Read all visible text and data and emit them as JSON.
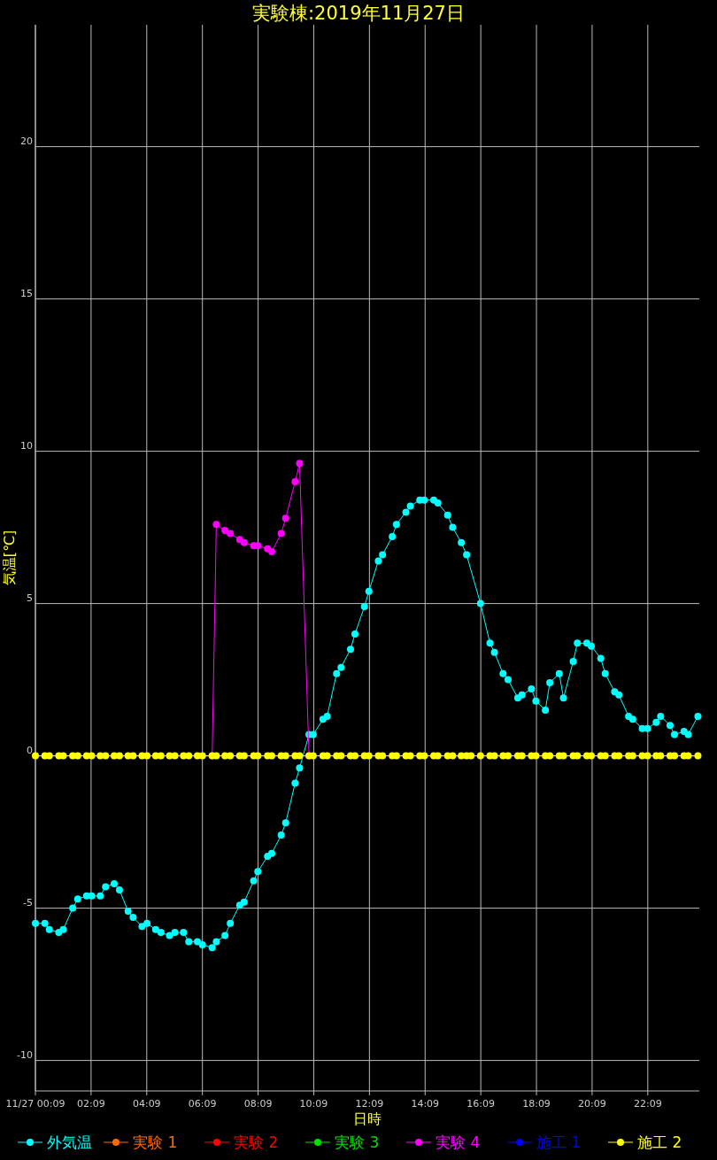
{
  "chart_data": {
    "type": "line",
    "title": "実験棟:2019年11月27日",
    "xlabel": "日時",
    "ylabel": "気温[℃]",
    "x": [
      0.15,
      0.49,
      0.65,
      0.99,
      1.15,
      1.49,
      1.67,
      1.99,
      2.17,
      2.48,
      2.67,
      2.98,
      3.17,
      3.48,
      3.66,
      3.98,
      4.16,
      4.47,
      4.66,
      4.97,
      5.16,
      5.47,
      5.66,
      5.97,
      6.15,
      6.5,
      6.65,
      6.96,
      7.15,
      7.49,
      7.65,
      7.99,
      8.14,
      8.49,
      8.64,
      8.98,
      9.14,
      9.48,
      9.64,
      9.98,
      10.13,
      10.48,
      10.63,
      10.97,
      11.13,
      11.47,
      11.63,
      11.97,
      12.13,
      12.47,
      12.62,
      12.97,
      13.12,
      13.46,
      13.62,
      13.96,
      14.12,
      14.46,
      14.61,
      14.96,
      15.14,
      15.45,
      15.64,
      16.14,
      16.48,
      16.64,
      16.95,
      17.13,
      17.48,
      17.63,
      17.97,
      18.13,
      18.47,
      18.63,
      18.97,
      19.12,
      19.47,
      19.62,
      19.96,
      20.12,
      20.46,
      20.62,
      20.96,
      21.11,
      21.46,
      21.61,
      21.95,
      22.14,
      22.45,
      22.61,
      22.95,
      23.11,
      23.45,
      23.6,
      23.95
    ],
    "series": [
      {
        "name": "外気温",
        "color": "#00ffff",
        "values": [
          -5.5,
          -5.5,
          -5.7,
          -5.8,
          -5.7,
          -5.0,
          -4.7,
          -4.6,
          -4.6,
          -4.6,
          -4.3,
          -4.2,
          -4.4,
          -5.1,
          -5.3,
          -5.6,
          -5.5,
          -5.7,
          -5.8,
          -5.9,
          -5.8,
          -5.8,
          -6.1,
          -6.1,
          -6.2,
          -6.3,
          -6.1,
          -5.9,
          -5.5,
          -4.9,
          -4.8,
          -4.1,
          -3.8,
          -3.3,
          -3.2,
          -2.6,
          -2.2,
          -0.9,
          -0.4,
          0.7,
          0.7,
          1.2,
          1.3,
          2.7,
          2.9,
          3.5,
          4.0,
          4.9,
          5.4,
          6.4,
          6.6,
          7.2,
          7.6,
          8.0,
          8.2,
          8.4,
          8.4,
          8.4,
          8.3,
          7.9,
          7.5,
          7.0,
          6.6,
          5.0,
          3.7,
          3.4,
          2.7,
          2.5,
          1.9,
          2.0,
          2.2,
          1.8,
          1.5,
          2.4,
          2.7,
          1.9,
          3.1,
          3.7,
          3.7,
          3.6,
          3.2,
          2.7,
          2.1,
          2.0,
          1.3,
          1.2,
          0.9,
          0.9,
          1.1,
          1.3,
          1.0,
          0.7,
          0.8,
          0.7,
          1.3
        ]
      },
      {
        "name": "実験 1",
        "color": "#ff6a00",
        "values": [
          null,
          null,
          null,
          null,
          null,
          null,
          null,
          null,
          null,
          null,
          null,
          null,
          null,
          null,
          null,
          null,
          null,
          null,
          null,
          null,
          null,
          null,
          null,
          null,
          null,
          null,
          null,
          null,
          null,
          null,
          null,
          null,
          null,
          null,
          null,
          null,
          null,
          null,
          null,
          null,
          null,
          null,
          null,
          null,
          null,
          null,
          null,
          null,
          null,
          null,
          null,
          null,
          null,
          null,
          null,
          null,
          null,
          null,
          null,
          null,
          null,
          null,
          null,
          null,
          null,
          null,
          null,
          null,
          null,
          null,
          null,
          null,
          null,
          null,
          null,
          null,
          null,
          null,
          null,
          null,
          null,
          null,
          null,
          null,
          null,
          null,
          null,
          null,
          null,
          null,
          null,
          null,
          null,
          null,
          null
        ]
      },
      {
        "name": "実験 2",
        "color": "#ff0000",
        "values": [
          null,
          null,
          null,
          null,
          null,
          null,
          null,
          null,
          null,
          null,
          null,
          null,
          null,
          null,
          null,
          null,
          null,
          null,
          null,
          null,
          null,
          null,
          null,
          null,
          null,
          null,
          null,
          null,
          null,
          null,
          null,
          null,
          null,
          null,
          null,
          null,
          null,
          null,
          null,
          null,
          null,
          null,
          null,
          null,
          null,
          null,
          null,
          null,
          null,
          null,
          null,
          null,
          null,
          null,
          null,
          null,
          null,
          null,
          null,
          null,
          null,
          null,
          null,
          null,
          null,
          null,
          null,
          null,
          null,
          null,
          null,
          null,
          null,
          null,
          null,
          null,
          null,
          null,
          null,
          null,
          null,
          null,
          null,
          null,
          null,
          null,
          null,
          null,
          null,
          null,
          null,
          null,
          null,
          null,
          null
        ]
      },
      {
        "name": "実験 3",
        "color": "#00e000",
        "values": [
          null,
          null,
          null,
          null,
          null,
          null,
          null,
          null,
          null,
          null,
          null,
          null,
          null,
          null,
          null,
          null,
          null,
          null,
          null,
          null,
          null,
          null,
          null,
          null,
          null,
          null,
          null,
          null,
          null,
          null,
          null,
          null,
          null,
          null,
          null,
          null,
          null,
          null,
          null,
          null,
          null,
          null,
          null,
          null,
          null,
          null,
          null,
          null,
          null,
          null,
          null,
          null,
          null,
          null,
          null,
          null,
          null,
          null,
          null,
          null,
          null,
          null,
          null,
          null,
          null,
          null,
          null,
          null,
          null,
          null,
          null,
          null,
          null,
          null,
          null,
          null,
          null,
          null,
          null,
          null,
          null,
          null,
          null,
          null,
          null,
          null,
          null,
          null,
          null,
          null,
          null,
          null,
          null,
          null,
          null
        ]
      },
      {
        "name": "実験 4",
        "color": "#ff00ff",
        "x": [
          6.5,
          6.65,
          6.96,
          7.15,
          7.49,
          7.65,
          7.99,
          8.14,
          8.49,
          8.64,
          8.98,
          9.14,
          9.48,
          9.64,
          9.98
        ],
        "values": [
          0,
          7.6,
          7.4,
          7.3,
          7.1,
          7.0,
          6.9,
          6.9,
          6.8,
          6.7,
          7.3,
          7.8,
          9.0,
          9.6,
          0
        ]
      },
      {
        "name": "施工 1",
        "color": "#0000ff",
        "values": [
          null,
          null,
          null,
          null,
          null,
          null,
          null,
          null,
          null,
          null,
          null,
          null,
          null,
          null,
          null,
          null,
          null,
          null,
          null,
          null,
          null,
          null,
          null,
          null,
          null,
          null,
          null,
          null,
          null,
          null,
          null,
          null,
          null,
          null,
          null,
          null,
          null,
          null,
          null,
          null,
          null,
          null,
          null,
          null,
          null,
          null,
          null,
          null,
          null,
          null,
          null,
          null,
          null,
          null,
          null,
          null,
          null,
          null,
          null,
          null,
          null,
          null,
          null,
          null,
          null,
          null,
          null,
          null,
          null,
          null,
          null,
          null,
          null,
          null,
          null,
          null,
          null,
          null,
          null,
          null,
          null,
          null,
          null,
          null,
          null,
          null,
          null,
          null,
          null,
          null,
          null,
          null,
          null,
          null,
          null
        ]
      },
      {
        "name": "施工 2",
        "color": "#ffff00",
        "x": [
          0.15,
          0.49,
          0.65,
          0.99,
          1.15,
          1.49,
          1.67,
          1.99,
          2.17,
          2.48,
          2.67,
          2.98,
          3.17,
          3.48,
          3.66,
          3.98,
          4.16,
          4.47,
          4.66,
          4.97,
          5.16,
          5.47,
          5.66,
          5.97,
          6.15,
          6.5,
          6.65,
          6.96,
          7.15,
          7.49,
          7.65,
          7.99,
          8.14,
          8.49,
          8.64,
          8.98,
          9.14,
          9.48,
          9.64,
          9.98,
          10.13,
          10.48,
          10.63,
          10.97,
          11.13,
          11.47,
          11.63,
          11.97,
          12.13,
          12.47,
          12.62,
          12.97,
          13.12,
          13.46,
          13.62,
          13.96,
          14.12,
          14.46,
          14.61,
          14.96,
          15.14,
          15.45,
          15.64,
          15.8,
          16.14,
          16.48,
          16.64,
          16.95,
          17.13,
          17.48,
          17.63,
          17.97,
          18.13,
          18.47,
          18.63,
          18.97,
          19.12,
          19.47,
          19.62,
          19.96,
          20.12,
          20.46,
          20.62,
          20.96,
          21.11,
          21.46,
          21.61,
          21.95,
          22.14,
          22.45,
          22.61,
          22.95,
          23.11,
          23.45,
          23.6,
          23.95
        ],
        "values": [
          0,
          0,
          0,
          0,
          0,
          0,
          0,
          0,
          0,
          0,
          0,
          0,
          0,
          0,
          0,
          0,
          0,
          0,
          0,
          0,
          0,
          0,
          0,
          0,
          0,
          0,
          0,
          0,
          0,
          0,
          0,
          0,
          0,
          0,
          0,
          0,
          0,
          0,
          0,
          0,
          0,
          0,
          0,
          0,
          0,
          0,
          0,
          0,
          0,
          0,
          0,
          0,
          0,
          0,
          0,
          0,
          0,
          0,
          0,
          0,
          0,
          0,
          0,
          0,
          0,
          0,
          0,
          0,
          0,
          0,
          0,
          0,
          0,
          0,
          0,
          0,
          0,
          0,
          0,
          0,
          0,
          0,
          0,
          0,
          0,
          0,
          0,
          0,
          0,
          0,
          0,
          0,
          0,
          0,
          0,
          0
        ]
      }
    ],
    "xlim": [
      0.15,
      24
    ],
    "xticks": [
      {
        "value": 0.15,
        "label": "11/27 00:09"
      },
      {
        "value": 2.15,
        "label": "02:09"
      },
      {
        "value": 4.15,
        "label": "04:09"
      },
      {
        "value": 6.15,
        "label": "06:09"
      },
      {
        "value": 8.15,
        "label": "08:09"
      },
      {
        "value": 10.15,
        "label": "10:09"
      },
      {
        "value": 12.15,
        "label": "12:09"
      },
      {
        "value": 14.15,
        "label": "14:09"
      },
      {
        "value": 16.15,
        "label": "16:09"
      },
      {
        "value": 18.15,
        "label": "18:09"
      },
      {
        "value": 20.15,
        "label": "20:09"
      },
      {
        "value": 22.15,
        "label": "22:09"
      }
    ],
    "ylim": [
      -11,
      24
    ],
    "yticks": [
      -10,
      -5,
      0,
      5,
      10,
      15,
      20
    ],
    "grid": true,
    "legend": "bottom",
    "marker": "circle",
    "line_style": "solid"
  }
}
